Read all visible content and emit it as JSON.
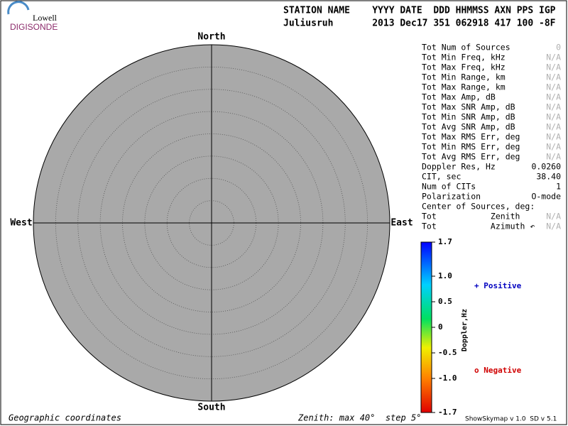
{
  "logo": {
    "line1": "Lowell",
    "line2": "DIGISONDE"
  },
  "header": {
    "columns": "STATION NAME    YYYY DATE  DDD HHMMSS AXN PPS IGP",
    "values": "Juliusruh       2013 Dec17 351 062918 417 100 -8F"
  },
  "skymap": {
    "north": "North",
    "south": "South",
    "west": "West",
    "east": "East"
  },
  "stats": [
    [
      "Tot Num of Sources",
      "0"
    ],
    [
      "Tot Min Freq, kHz",
      "N/A"
    ],
    [
      "Tot Max Freq, kHz",
      "N/A"
    ],
    [
      "Tot Min Range, km",
      "N/A"
    ],
    [
      "Tot Max Range, km",
      "N/A"
    ],
    [
      "Tot Max Amp, dB",
      "N/A"
    ],
    [
      "Tot Max SNR Amp, dB",
      "N/A"
    ],
    [
      "Tot Min SNR Amp, dB",
      "N/A"
    ],
    [
      "Tot Avg SNR Amp, dB",
      "N/A"
    ],
    [
      "Tot Max RMS Err, deg",
      "N/A"
    ],
    [
      "Tot Min RMS Err, deg",
      "N/A"
    ],
    [
      "Tot Avg RMS Err, deg",
      "N/A"
    ],
    [
      "Doppler Res, Hz",
      "0.0260"
    ],
    [
      "CIT, sec",
      "38.40"
    ],
    [
      "Num of CITs",
      "1"
    ],
    [
      "Polarization",
      "O-mode"
    ],
    [
      "Center of Sources, deg:",
      ""
    ],
    [
      "Tot           Zenith",
      "N/A"
    ],
    [
      "Tot           Azimuth ↶",
      "N/A"
    ]
  ],
  "colorbar": {
    "label": "Doppler,Hz",
    "ticks": [
      "1.7",
      "1.0",
      "0.5",
      "0",
      "-0.5",
      "-1.0",
      "-1.7"
    ]
  },
  "legend": {
    "positive": "+ Positive",
    "negative": "o Negative"
  },
  "footer": {
    "coords": "Geographic coordinates",
    "zenith": "Zenith: max 40°  step 5°",
    "version": "ShowSkymap v 1.0  SD v 5.1"
  }
}
